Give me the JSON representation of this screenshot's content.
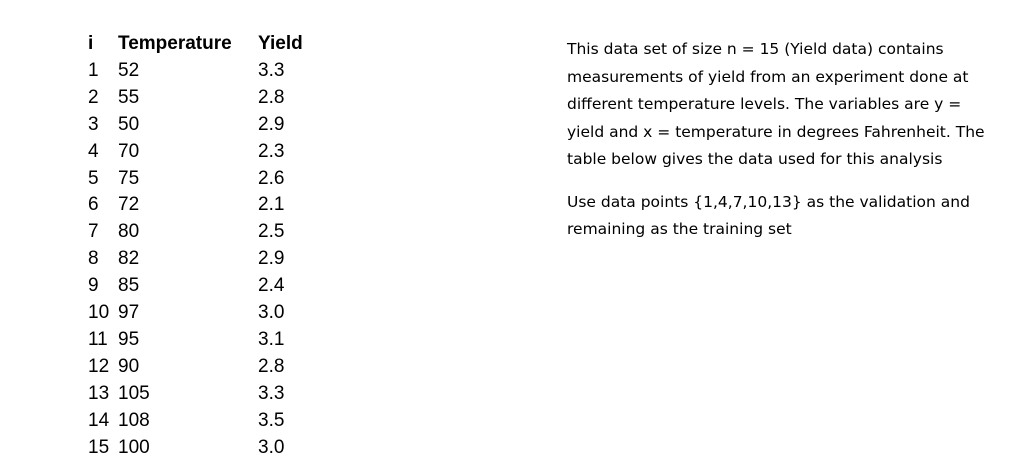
{
  "table": {
    "headers": [
      "i",
      "Temperature",
      "Yield"
    ],
    "rows": [
      [
        "1",
        "52",
        "3.3"
      ],
      [
        "2",
        "55",
        "2.8"
      ],
      [
        "3",
        "50",
        "2.9"
      ],
      [
        "4",
        "70",
        "2.3"
      ],
      [
        "5",
        "75",
        "2.6"
      ],
      [
        "6",
        "72",
        "2.1"
      ],
      [
        "7",
        "80",
        "2.5"
      ],
      [
        "8",
        "82",
        "2.9"
      ],
      [
        "9",
        "85",
        "2.4"
      ],
      [
        "10",
        "97",
        "3.0"
      ],
      [
        "11",
        "95",
        "3.1"
      ],
      [
        "12",
        "90",
        "2.8"
      ],
      [
        "13",
        "105",
        "3.3"
      ],
      [
        "14",
        "108",
        "3.5"
      ],
      [
        "15",
        "100",
        "3.0"
      ]
    ]
  },
  "description": {
    "paragraphs": [
      "This data set of size n = 15 (Yield data) contains measurements of yield from an experiment done at different temperature levels. The variables are y = yield and x = temperature in degrees Fahrenheit. The table below gives the data used for this analysis",
      "Use data points {1,4,7,10,13} as the validation and remaining as the training set"
    ]
  }
}
